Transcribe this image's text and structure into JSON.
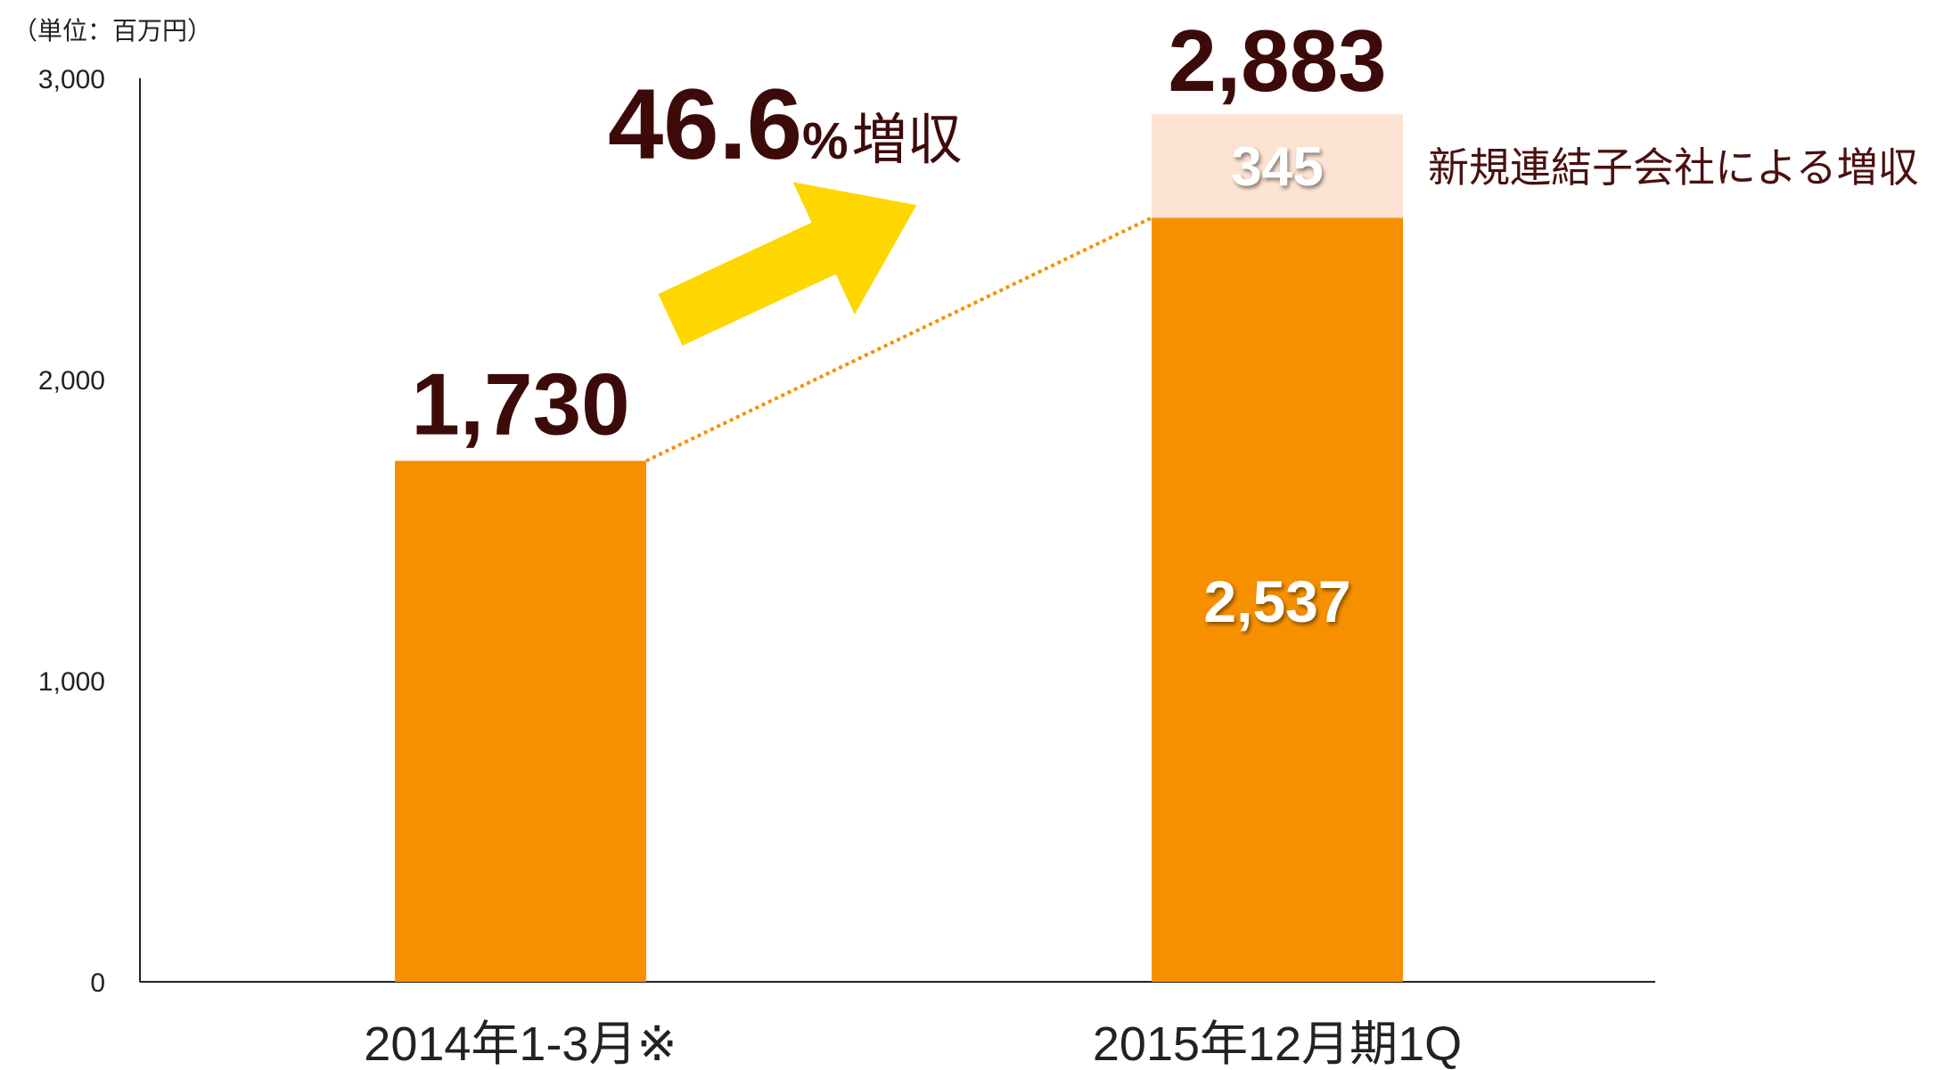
{
  "chart_data": {
    "type": "stacked_bar",
    "unit_label": "（単位：百万円）",
    "categories": [
      "2014年1-3月※",
      "2015年12月期1Q"
    ],
    "series": [
      {
        "name": null,
        "color": "#f79000",
        "values": [
          1730,
          2537
        ],
        "value_labels": [
          "1,730",
          "2,537"
        ]
      },
      {
        "name": "新規連結子会社による増収",
        "color": "#fde3d4",
        "values": [
          null,
          345
        ],
        "value_labels": [
          null,
          "345"
        ]
      }
    ],
    "total": {
      "value": 2883,
      "label": "2,883"
    },
    "growth": {
      "value": 46.6,
      "label": "46.6",
      "unit": "%",
      "text": "増収"
    },
    "ylim": [
      0,
      3000
    ],
    "yticks": [
      0,
      {
        "value": 1000,
        "label": "1,000"
      },
      {
        "value": 2000,
        "label": "2,000"
      },
      {
        "value": 3000,
        "label": "3,000"
      }
    ],
    "grid": false
  }
}
